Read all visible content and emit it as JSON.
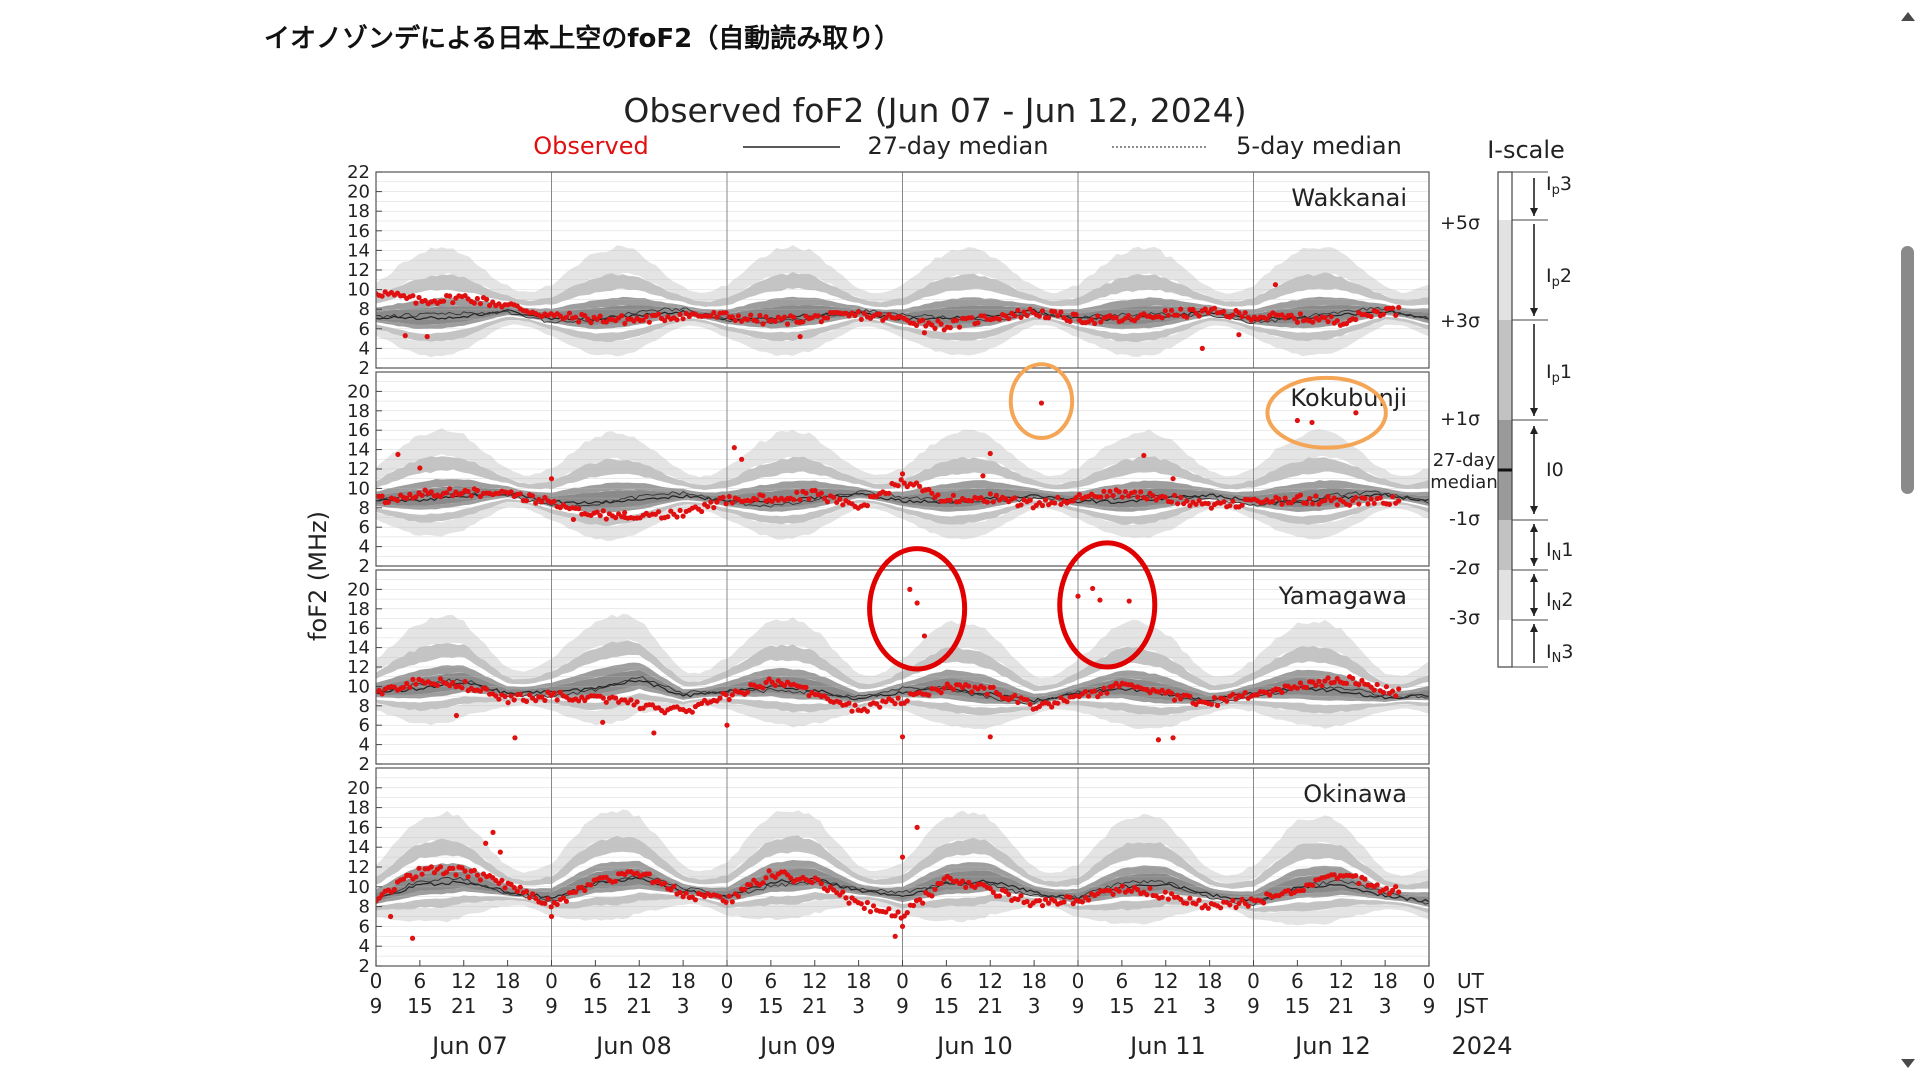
{
  "page": {
    "heading": "イオノゾンデによる日本上空のfoF2（自動読み取り）"
  },
  "chart_data": {
    "type": "scatter",
    "title": "Observed foF2 (Jun 07 - Jun 12, 2024)",
    "ylabel": "foF2 (MHz)",
    "legend": {
      "observed": "Observed",
      "median27": "27-day median",
      "median5": "5-day median"
    },
    "colors": {
      "observed": "#e01010",
      "median": "#222222",
      "band_outer": "#e4e4e4",
      "band_mid": "#c4c4c4",
      "band_inner": "#9e9e9e",
      "highlight_orange": "#f4a555",
      "highlight_red": "#e00000"
    },
    "y_ticks": [
      "2",
      "4",
      "6",
      "8",
      "10",
      "12",
      "14",
      "16",
      "18",
      "20",
      "22"
    ],
    "ylim": [
      2,
      22
    ],
    "ut_ticks": [
      "0",
      "6",
      "12",
      "18",
      "0",
      "6",
      "12",
      "18",
      "0",
      "6",
      "12",
      "18",
      "0",
      "6",
      "12",
      "18",
      "0",
      "6",
      "12",
      "18",
      "0",
      "6",
      "12",
      "18",
      "0"
    ],
    "jst_ticks": [
      "9",
      "15",
      "21",
      "3",
      "9",
      "15",
      "21",
      "3",
      "9",
      "15",
      "21",
      "3",
      "9",
      "15",
      "21",
      "3",
      "9",
      "15",
      "21",
      "3",
      "9",
      "15",
      "21",
      "3",
      "9"
    ],
    "ut_label": "UT",
    "jst_label": "JST",
    "days": [
      "Jun 07",
      "Jun 08",
      "Jun 09",
      "Jun 10",
      "Jun 11",
      "Jun 12"
    ],
    "year": "2024",
    "x_unit": "hours UT from Jun 07 00:00",
    "xlim": [
      0,
      144
    ],
    "stations": [
      {
        "name": "Wakkanai",
        "ylim": [
          2,
          22
        ],
        "observed_trend": [
          [
            0,
            9.8
          ],
          [
            6,
            8.8
          ],
          [
            12,
            9.2
          ],
          [
            18,
            8.4
          ],
          [
            24,
            7.3
          ],
          [
            30,
            7.0
          ],
          [
            36,
            6.9
          ],
          [
            42,
            7.4
          ],
          [
            48,
            7.3
          ],
          [
            54,
            6.8
          ],
          [
            60,
            7.1
          ],
          [
            66,
            7.4
          ],
          [
            72,
            7.0
          ],
          [
            78,
            6.3
          ],
          [
            84,
            7.2
          ],
          [
            90,
            7.7
          ],
          [
            96,
            7.0
          ],
          [
            102,
            6.9
          ],
          [
            108,
            7.5
          ],
          [
            114,
            7.7
          ],
          [
            120,
            7.3
          ],
          [
            126,
            7.1
          ],
          [
            132,
            6.8
          ],
          [
            138,
            7.9
          ],
          [
            144,
            7.5
          ]
        ],
        "observed_outliers": [
          [
            4,
            5.3
          ],
          [
            7,
            5.2
          ],
          [
            58,
            5.2
          ],
          [
            75,
            5.6
          ],
          [
            113,
            4.0
          ],
          [
            123,
            10.5
          ],
          [
            118,
            5.4
          ]
        ],
        "median_27": [
          [
            0,
            7.2
          ],
          [
            6,
            7.0
          ],
          [
            12,
            7.3
          ],
          [
            18,
            7.8
          ],
          [
            24,
            7.1
          ],
          [
            30,
            7.0
          ],
          [
            36,
            7.4
          ],
          [
            42,
            7.7
          ],
          [
            48,
            7.0
          ],
          [
            54,
            7.1
          ],
          [
            60,
            7.4
          ],
          [
            66,
            7.6
          ],
          [
            72,
            7.0
          ],
          [
            78,
            7.1
          ],
          [
            84,
            7.3
          ],
          [
            90,
            7.8
          ],
          [
            96,
            7.0
          ],
          [
            102,
            7.0
          ],
          [
            108,
            7.3
          ],
          [
            114,
            7.7
          ],
          [
            120,
            7.0
          ],
          [
            126,
            7.1
          ],
          [
            132,
            7.4
          ],
          [
            138,
            7.8
          ],
          [
            144,
            7.1
          ]
        ]
      },
      {
        "name": "Kokubunji",
        "ylim": [
          2,
          22
        ],
        "observed_trend": [
          [
            0,
            8.8
          ],
          [
            6,
            9.4
          ],
          [
            12,
            9.6
          ],
          [
            18,
            9.3
          ],
          [
            24,
            8.6
          ],
          [
            30,
            7.3
          ],
          [
            36,
            7.1
          ],
          [
            42,
            7.3
          ],
          [
            48,
            8.8
          ],
          [
            54,
            9.0
          ],
          [
            60,
            9.4
          ],
          [
            66,
            8.0
          ],
          [
            72,
            10.8
          ],
          [
            78,
            8.9
          ],
          [
            84,
            9.0
          ],
          [
            90,
            8.3
          ],
          [
            96,
            9.1
          ],
          [
            102,
            9.5
          ],
          [
            108,
            9.0
          ],
          [
            114,
            8.4
          ],
          [
            120,
            8.6
          ],
          [
            126,
            8.9
          ],
          [
            132,
            8.7
          ],
          [
            138,
            8.8
          ],
          [
            144,
            8.5
          ]
        ],
        "observed_outliers": [
          [
            3,
            13.5
          ],
          [
            6,
            12.1
          ],
          [
            24,
            11.0
          ],
          [
            27,
            6.8
          ],
          [
            34,
            7.5
          ],
          [
            49,
            14.2
          ],
          [
            50,
            13.0
          ],
          [
            72,
            11.5
          ],
          [
            83,
            11.3
          ],
          [
            84,
            13.6
          ],
          [
            91,
            18.8
          ],
          [
            105,
            13.4
          ],
          [
            109,
            11.0
          ],
          [
            126,
            17.0
          ],
          [
            128,
            16.8
          ],
          [
            134,
            17.8
          ]
        ],
        "median_27": [
          [
            0,
            8.7
          ],
          [
            6,
            8.8
          ],
          [
            12,
            9.2
          ],
          [
            18,
            9.5
          ],
          [
            24,
            8.6
          ],
          [
            30,
            8.5
          ],
          [
            36,
            8.8
          ],
          [
            42,
            9.2
          ],
          [
            48,
            8.7
          ],
          [
            54,
            8.6
          ],
          [
            60,
            9.0
          ],
          [
            66,
            9.4
          ],
          [
            72,
            8.7
          ],
          [
            78,
            8.6
          ],
          [
            84,
            9.0
          ],
          [
            90,
            9.3
          ],
          [
            96,
            8.7
          ],
          [
            102,
            8.6
          ],
          [
            108,
            9.0
          ],
          [
            114,
            9.3
          ],
          [
            120,
            8.7
          ],
          [
            126,
            8.6
          ],
          [
            132,
            9.0
          ],
          [
            138,
            9.3
          ],
          [
            144,
            8.7
          ]
        ]
      },
      {
        "name": "Yamagawa",
        "ylim": [
          2,
          22
        ],
        "observed_trend": [
          [
            0,
            9.4
          ],
          [
            6,
            10.6
          ],
          [
            12,
            10.1
          ],
          [
            18,
            8.7
          ],
          [
            24,
            9.0
          ],
          [
            30,
            8.8
          ],
          [
            36,
            8.1
          ],
          [
            42,
            7.4
          ],
          [
            48,
            9.0
          ],
          [
            54,
            10.5
          ],
          [
            60,
            9.2
          ],
          [
            66,
            7.6
          ],
          [
            72,
            8.6
          ],
          [
            78,
            9.9
          ],
          [
            84,
            9.6
          ],
          [
            90,
            7.9
          ],
          [
            96,
            8.8
          ],
          [
            102,
            10.1
          ],
          [
            108,
            9.2
          ],
          [
            114,
            8.3
          ],
          [
            120,
            9.2
          ],
          [
            126,
            10.1
          ],
          [
            132,
            10.8
          ],
          [
            138,
            9.6
          ],
          [
            144,
            9.0
          ]
        ],
        "observed_outliers": [
          [
            11,
            7.0
          ],
          [
            19,
            4.7
          ],
          [
            31,
            6.3
          ],
          [
            38,
            5.2
          ],
          [
            48,
            6.0
          ],
          [
            72,
            4.8
          ],
          [
            73,
            20.0
          ],
          [
            74,
            18.6
          ],
          [
            75,
            15.2
          ],
          [
            84,
            4.8
          ],
          [
            98,
            20.1
          ],
          [
            99,
            18.9
          ],
          [
            103,
            18.8
          ],
          [
            107,
            4.5
          ],
          [
            109,
            4.7
          ],
          [
            96,
            19.3
          ]
        ],
        "median_27": [
          [
            0,
            9.4
          ],
          [
            6,
            9.8
          ],
          [
            12,
            10.4
          ],
          [
            18,
            9.3
          ],
          [
            24,
            9.4
          ],
          [
            30,
            9.8
          ],
          [
            36,
            10.7
          ],
          [
            42,
            9.0
          ],
          [
            48,
            9.5
          ],
          [
            54,
            10.0
          ],
          [
            60,
            9.6
          ],
          [
            66,
            8.7
          ],
          [
            72,
            9.4
          ],
          [
            78,
            9.8
          ],
          [
            84,
            9.2
          ],
          [
            90,
            8.5
          ],
          [
            96,
            9.3
          ],
          [
            102,
            9.8
          ],
          [
            108,
            9.2
          ],
          [
            114,
            8.6
          ],
          [
            120,
            9.3
          ],
          [
            126,
            9.8
          ],
          [
            132,
            9.5
          ],
          [
            138,
            8.8
          ],
          [
            144,
            9.1
          ]
        ]
      },
      {
        "name": "Okinawa",
        "ylim": [
          2,
          22
        ],
        "observed_trend": [
          [
            0,
            8.8
          ],
          [
            6,
            11.6
          ],
          [
            12,
            11.6
          ],
          [
            18,
            10.1
          ],
          [
            24,
            8.2
          ],
          [
            30,
            10.4
          ],
          [
            36,
            11.5
          ],
          [
            42,
            9.2
          ],
          [
            48,
            8.6
          ],
          [
            54,
            11.3
          ],
          [
            60,
            10.6
          ],
          [
            66,
            8.2
          ],
          [
            72,
            7.1
          ],
          [
            78,
            10.7
          ],
          [
            84,
            9.7
          ],
          [
            90,
            8.3
          ],
          [
            96,
            8.7
          ],
          [
            102,
            9.8
          ],
          [
            108,
            9.2
          ],
          [
            114,
            8.0
          ],
          [
            120,
            8.5
          ],
          [
            126,
            9.7
          ],
          [
            132,
            11.3
          ],
          [
            138,
            9.7
          ],
          [
            144,
            9.3
          ]
        ],
        "observed_outliers": [
          [
            2,
            7.0
          ],
          [
            5,
            4.8
          ],
          [
            15,
            14.4
          ],
          [
            16,
            15.5
          ],
          [
            17,
            13.5
          ],
          [
            24,
            7.0
          ],
          [
            71,
            5.0
          ],
          [
            72,
            6.0
          ],
          [
            72,
            13.0
          ],
          [
            74,
            16.0
          ]
        ],
        "median_27": [
          [
            0,
            8.8
          ],
          [
            6,
            10.2
          ],
          [
            12,
            10.5
          ],
          [
            18,
            9.5
          ],
          [
            24,
            8.9
          ],
          [
            30,
            10.4
          ],
          [
            36,
            10.8
          ],
          [
            42,
            9.6
          ],
          [
            48,
            9.0
          ],
          [
            54,
            10.5
          ],
          [
            60,
            10.8
          ],
          [
            66,
            9.6
          ],
          [
            72,
            9.0
          ],
          [
            78,
            10.3
          ],
          [
            84,
            10.6
          ],
          [
            90,
            9.4
          ],
          [
            96,
            8.8
          ],
          [
            102,
            10.0
          ],
          [
            108,
            10.3
          ],
          [
            114,
            9.2
          ],
          [
            120,
            8.6
          ],
          [
            126,
            9.9
          ],
          [
            132,
            10.2
          ],
          [
            138,
            9.1
          ],
          [
            144,
            8.5
          ]
        ]
      }
    ],
    "highlights": [
      {
        "station": 1,
        "x": 91,
        "y": 19.0,
        "rx": 4.2,
        "ry": 3.8,
        "color": "orange"
      },
      {
        "station": 1,
        "x": 130,
        "y": 17.8,
        "rx": 8.1,
        "ry": 3.6,
        "color": "orange"
      },
      {
        "station": 2,
        "x": 74,
        "y": 18.0,
        "rx": 6.5,
        "ry": 6.2,
        "color": "red"
      },
      {
        "station": 2,
        "x": 100,
        "y": 18.4,
        "rx": 6.5,
        "ry": 6.4,
        "color": "red"
      }
    ],
    "i_scale": {
      "title": "I-scale",
      "sigma_labels": [
        "+5σ",
        "+3σ",
        "+1σ",
        "27-day\nmedian",
        "-1σ",
        "-2σ",
        "-3σ"
      ],
      "index_labels": [
        "Ip3",
        "Ip2",
        "Ip1",
        "I0",
        "IN1",
        "IN2",
        "IN3"
      ]
    }
  }
}
